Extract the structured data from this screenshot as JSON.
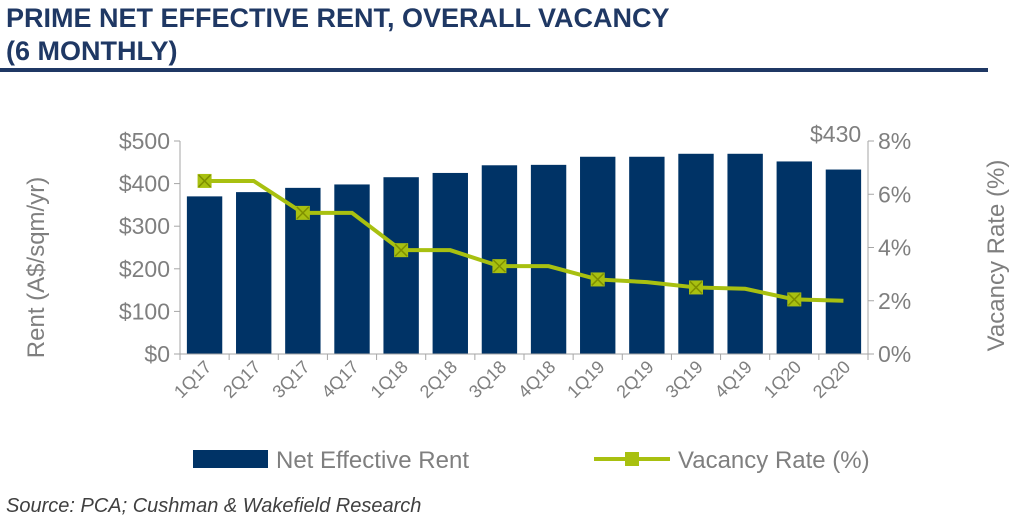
{
  "title_line1": "PRIME NET EFFECTIVE RENT, OVERALL VACANCY",
  "title_line2": "(6 MONTHLY)",
  "source": "Source: PCA; Cushman & Wakefield Research",
  "colors": {
    "bar": "#003366",
    "line": "#a8c010",
    "title": "#1f3864",
    "axis_text": "#7f7f7f"
  },
  "chart_data": {
    "type": "bar",
    "categories": [
      "1Q17",
      "2Q17",
      "3Q17",
      "4Q17",
      "1Q18",
      "2Q18",
      "3Q18",
      "4Q18",
      "1Q19",
      "2Q19",
      "3Q19",
      "4Q19",
      "1Q20",
      "2Q20"
    ],
    "series": [
      {
        "name": "Net Effective Rent",
        "type": "bar",
        "axis": "left",
        "values": [
          370,
          380,
          390,
          398,
          415,
          425,
          443,
          444,
          463,
          463,
          470,
          470,
          452,
          433
        ]
      },
      {
        "name": "Vacancy Rate (%)",
        "type": "line",
        "axis": "right",
        "values": [
          6.5,
          6.5,
          5.3,
          5.3,
          3.9,
          3.9,
          3.3,
          3.3,
          2.8,
          2.7,
          2.5,
          2.45,
          2.05,
          2.0
        ],
        "marked": [
          true,
          false,
          true,
          false,
          true,
          false,
          true,
          false,
          true,
          false,
          true,
          false,
          true,
          false
        ]
      }
    ],
    "ylabel_left": "Rent (A$/sqm/yr)",
    "ylabel_right": "Vacancy Rate (%)",
    "ylim_left": [
      0,
      500
    ],
    "ylim_right": [
      0,
      8
    ],
    "left_ticks": [
      "$0",
      "$100",
      "$200",
      "$300",
      "$400",
      "$500"
    ],
    "right_ticks": [
      "0%",
      "2%",
      "4%",
      "6%",
      "8%"
    ],
    "annotation": "$430",
    "legend_position": "bottom",
    "grid": false
  }
}
